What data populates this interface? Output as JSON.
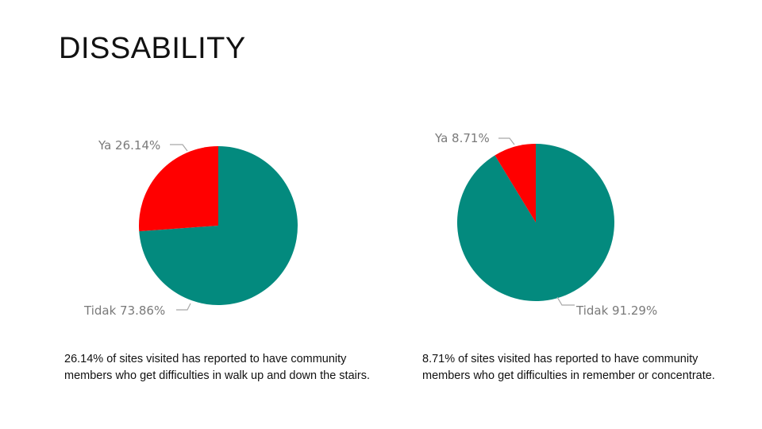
{
  "slide": {
    "title": "DISSABILITY"
  },
  "colors": {
    "ya": "#ff0000",
    "tidak": "#038a7e",
    "label": "#7a7a7a"
  },
  "chart_data": [
    {
      "type": "pie",
      "slices": [
        {
          "label": "Ya",
          "value": 26.14,
          "display": "Ya 26.14%",
          "color": "#ff0000"
        },
        {
          "label": "Tidak",
          "value": 73.86,
          "display": "Tidak 73.86%",
          "color": "#038a7e"
        }
      ],
      "caption": "26.14% of sites visited has reported to have community members who get difficulties in walk up and down the stairs."
    },
    {
      "type": "pie",
      "slices": [
        {
          "label": "Ya",
          "value": 8.71,
          "display": "Ya 8.71%",
          "color": "#ff0000"
        },
        {
          "label": "Tidak",
          "value": 91.29,
          "display": "Tidak 91.29%",
          "color": "#038a7e"
        }
      ],
      "caption": "8.71% of sites visited has reported to have community members who get difficulties in remember or concentrate."
    }
  ]
}
